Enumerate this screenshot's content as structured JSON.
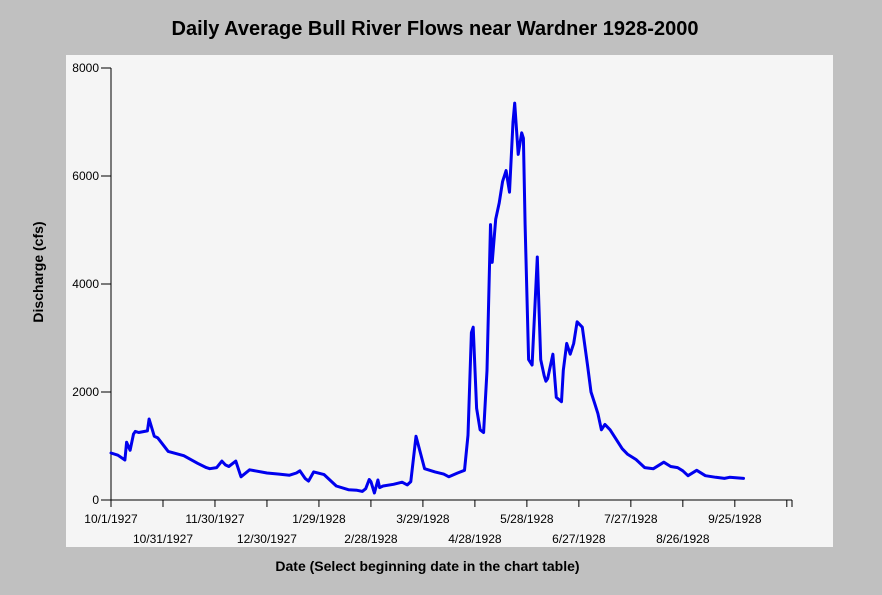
{
  "chart_data": {
    "type": "line",
    "title": "Daily Average Bull River Flows near Wardner 1928-2000",
    "xlabel": "Date (Select beginning date in the chart table)",
    "ylabel": "Discharge (cfs)",
    "ylim": [
      0,
      8000
    ],
    "y_ticks": [
      "0",
      "2000",
      "4000",
      "6000",
      "8000"
    ],
    "x_tick_labels": [
      "10/1/1927",
      "10/31/1927",
      "11/30/1927",
      "12/30/1927",
      "1/29/1928",
      "2/28/1928",
      "3/29/1928",
      "4/28/1928",
      "5/28/1928",
      "6/27/1928",
      "7/27/1928",
      "8/26/1928",
      "9/25/1928"
    ],
    "grid": false,
    "line_color": "#0000ee",
    "plot_background": "#f5f5f5",
    "series": [
      {
        "x": [
          "10/1/1927",
          "10/5/1927",
          "10/9/1927",
          "10/10/1927",
          "10/12/1927",
          "10/14/1927",
          "10/15/1927",
          "10/17/1927",
          "10/22/1927",
          "10/23/1927",
          "10/26/1927",
          "10/28/1927",
          "11/3/1927",
          "11/12/1927",
          "11/20/1927",
          "11/25/1927",
          "11/27/1927",
          "12/1/1927",
          "12/4/1927",
          "12/6/1927",
          "12/8/1927",
          "12/12/1927",
          "12/15/1927",
          "12/20/1927",
          "12/30/1927",
          "1/6/1928",
          "1/12/1928",
          "1/16/1928",
          "1/18/1928",
          "1/21/1928",
          "1/23/1928",
          "1/26/1928",
          "2/1/1928",
          "2/8/1928",
          "2/15/1928",
          "2/20/1928",
          "2/23/1928",
          "2/25/1928",
          "2/27/1928",
          "2/28/1928",
          "3/1/1928",
          "3/3/1928",
          "3/4/1928",
          "3/6/1928",
          "3/12/1928",
          "3/17/1928",
          "3/20/1928",
          "3/22/1928",
          "3/25/1928",
          "3/30/1928",
          "4/5/1928",
          "4/10/1928",
          "4/13/1928",
          "4/18/1928",
          "4/22/1928",
          "4/24/1928",
          "4/26/1928",
          "4/27/1928",
          "4/29/1928",
          "5/1/1928",
          "5/3/1928",
          "5/5/1928",
          "5/7/1928",
          "5/8/1928",
          "5/10/1928",
          "5/12/1928",
          "5/14/1928",
          "5/16/1928",
          "5/18/1928",
          "5/20/1928",
          "5/21/1928",
          "5/23/1928",
          "5/25/1928",
          "5/26/1928",
          "5/27/1928",
          "5/29/1928",
          "5/31/1928",
          "6/3/1928",
          "6/5/1928",
          "6/7/1928",
          "6/8/1928",
          "6/9/1928",
          "6/10/1928",
          "6/12/1928",
          "6/14/1928",
          "6/17/1928",
          "6/18/1928",
          "6/20/1928",
          "6/22/1928",
          "6/24/1928",
          "6/26/1928",
          "6/29/1928",
          "7/2/1928",
          "7/4/1928",
          "7/6/1928",
          "7/8/1928",
          "7/10/1928",
          "7/12/1928",
          "7/15/1928",
          "7/18/1928",
          "7/22/1928",
          "7/25/1928",
          "7/30/1928",
          "8/4/1928",
          "8/9/1928",
          "8/15/1928",
          "8/19/1928",
          "8/23/1928",
          "8/26/1928",
          "8/29/1928",
          "9/3/1928",
          "9/8/1928",
          "9/14/1928",
          "9/19/1928",
          "9/22/1928",
          "9/30/1928"
        ],
        "values": [
          870,
          830,
          740,
          1070,
          920,
          1220,
          1270,
          1250,
          1280,
          1500,
          1180,
          1150,
          900,
          820,
          680,
          600,
          580,
          600,
          720,
          650,
          620,
          720,
          430,
          560,
          500,
          480,
          460,
          500,
          540,
          400,
          350,
          520,
          470,
          260,
          190,
          180,
          160,
          210,
          380,
          340,
          130,
          370,
          230,
          260,
          290,
          330,
          280,
          340,
          1180,
          580,
          520,
          480,
          430,
          500,
          550,
          1200,
          3100,
          3200,
          1700,
          1300,
          1250,
          2400,
          5100,
          4400,
          5200,
          5500,
          5900,
          6100,
          5700,
          7000,
          7350,
          6400,
          6800,
          6700,
          5100,
          2600,
          2500,
          4500,
          2600,
          2300,
          2200,
          2250,
          2400,
          2700,
          1900,
          1820,
          2400,
          2900,
          2700,
          2900,
          3300,
          3200,
          2500,
          2000,
          1800,
          1600,
          1300,
          1400,
          1300,
          1150,
          950,
          850,
          750,
          600,
          580,
          700,
          620,
          600,
          540,
          450,
          550,
          450,
          420,
          400,
          420,
          400
        ]
      }
    ]
  }
}
